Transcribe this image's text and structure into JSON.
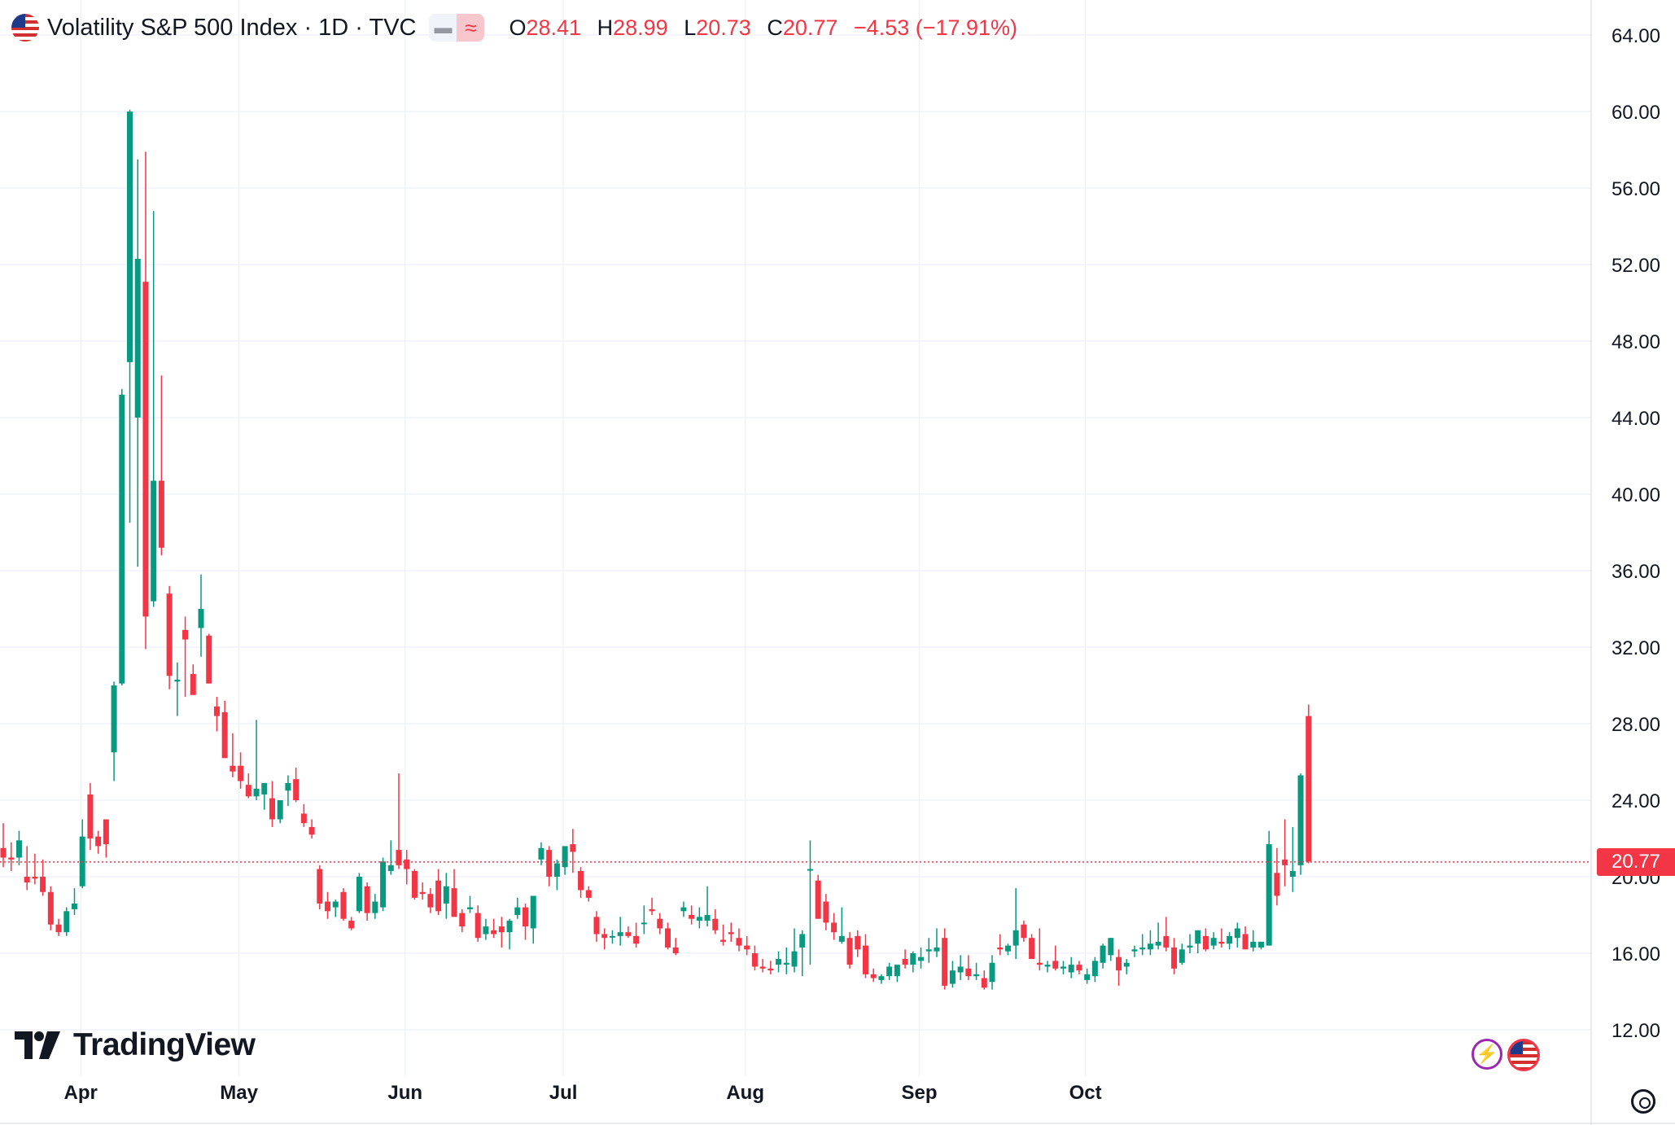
{
  "symbol": {
    "title": "Volatility S&P 500 Index · 1D · TVC",
    "flag_icon": "us-flag-icon",
    "open_label": "O",
    "open": "28.41",
    "high_label": "H",
    "high": "28.99",
    "low_label": "L",
    "low": "20.73",
    "close_label": "C",
    "close": "20.77",
    "change": "−4.53 (−17.91%)"
  },
  "colors": {
    "up": "#089981",
    "down": "#f23645",
    "grid": "#f0f3fa",
    "text": "#131722"
  },
  "brand": {
    "name": "TradingView"
  },
  "last_price_tag": "20.77",
  "badges": {
    "event_icon": "lightning-icon",
    "country_icon": "us-flag-icon"
  },
  "settings_icon": "gear-icon",
  "chart_data": {
    "type": "candlestick",
    "interval": "1D",
    "y_ticks": [
      "64.00",
      "60.00",
      "56.00",
      "52.00",
      "48.00",
      "44.00",
      "40.00",
      "36.00",
      "32.00",
      "28.00",
      "24.00",
      "20.00",
      "16.00",
      "12.00"
    ],
    "ylim": [
      10,
      65
    ],
    "x_ticks": [
      "Apr",
      "May",
      "Jun",
      "Jul",
      "Aug",
      "Sep",
      "Oct"
    ],
    "last_price": 20.77,
    "grid": true,
    "candles": [
      [
        21.5,
        22.8,
        20.5,
        21.0
      ],
      [
        21.0,
        21.8,
        20.3,
        20.9
      ],
      [
        21.0,
        22.4,
        20.6,
        21.9
      ],
      [
        20.0,
        21.6,
        19.3,
        19.7
      ],
      [
        20.0,
        21.2,
        19.6,
        19.9
      ],
      [
        20.0,
        20.9,
        19.0,
        19.2
      ],
      [
        19.2,
        19.5,
        17.2,
        17.5
      ],
      [
        17.5,
        17.8,
        16.9,
        17.1
      ],
      [
        17.1,
        18.4,
        16.9,
        18.2
      ],
      [
        18.3,
        19.4,
        18.0,
        18.6
      ],
      [
        19.5,
        23.0,
        19.4,
        22.1
      ],
      [
        24.3,
        24.9,
        21.4,
        22.0
      ],
      [
        22.1,
        22.4,
        21.2,
        21.6
      ],
      [
        23.0,
        23.0,
        21.0,
        21.7
      ],
      [
        26.5,
        30.2,
        25.0,
        30.0
      ],
      [
        30.1,
        45.5,
        30.0,
        45.2
      ],
      [
        46.9,
        60.1,
        38.5,
        60.0
      ],
      [
        44.0,
        57.5,
        36.2,
        52.3
      ],
      [
        51.1,
        57.9,
        31.9,
        33.6
      ],
      [
        34.4,
        54.8,
        34.1,
        40.7
      ],
      [
        40.7,
        46.2,
        36.8,
        37.2
      ],
      [
        34.8,
        35.2,
        29.8,
        30.5
      ],
      [
        30.2,
        31.2,
        28.4,
        30.3
      ],
      [
        32.9,
        33.6,
        29.4,
        32.4
      ],
      [
        30.6,
        31.1,
        29.6,
        29.5
      ],
      [
        33.0,
        35.8,
        31.5,
        34.0
      ],
      [
        32.6,
        32.7,
        30.1,
        30.1
      ],
      [
        28.9,
        29.4,
        27.6,
        28.4
      ],
      [
        28.6,
        29.2,
        26.4,
        26.2
      ],
      [
        25.8,
        27.5,
        25.2,
        25.5
      ],
      [
        25.8,
        26.5,
        24.6,
        25.0
      ],
      [
        24.8,
        25.4,
        24.1,
        24.2
      ],
      [
        24.2,
        28.2,
        24.0,
        24.6
      ],
      [
        24.3,
        24.8,
        23.5,
        24.9
      ],
      [
        24.1,
        25.0,
        22.6,
        23.0
      ],
      [
        23.0,
        23.8,
        22.8,
        24.0
      ],
      [
        24.5,
        25.3,
        23.7,
        24.9
      ],
      [
        25.1,
        25.7,
        23.9,
        24.0
      ],
      [
        23.3,
        23.8,
        22.6,
        22.8
      ],
      [
        22.6,
        23.0,
        22.0,
        22.2
      ],
      [
        20.4,
        20.6,
        18.3,
        18.6
      ],
      [
        18.7,
        19.2,
        17.8,
        18.2
      ],
      [
        18.4,
        18.8,
        17.9,
        18.7
      ],
      [
        19.2,
        19.4,
        17.7,
        17.8
      ],
      [
        17.7,
        17.9,
        17.2,
        17.3
      ],
      [
        18.2,
        20.2,
        18.1,
        20.0
      ],
      [
        19.5,
        19.7,
        17.7,
        18.1
      ],
      [
        18.1,
        19.1,
        17.8,
        18.7
      ],
      [
        18.4,
        21.0,
        18.2,
        20.8
      ],
      [
        20.3,
        21.9,
        20.1,
        20.6
      ],
      [
        21.4,
        25.4,
        20.4,
        20.6
      ],
      [
        20.9,
        21.4,
        19.6,
        20.4
      ],
      [
        20.3,
        20.4,
        18.8,
        18.9
      ],
      [
        19.2,
        19.7,
        18.8,
        19.1
      ],
      [
        19.1,
        19.4,
        18.1,
        18.4
      ],
      [
        19.8,
        20.4,
        18.0,
        18.2
      ],
      [
        18.6,
        20.2,
        17.8,
        19.5
      ],
      [
        19.4,
        20.4,
        18.1,
        17.9
      ],
      [
        18.1,
        18.3,
        17.1,
        17.4
      ],
      [
        18.3,
        19.0,
        18.1,
        18.4
      ],
      [
        18.1,
        18.5,
        16.6,
        16.8
      ],
      [
        17.0,
        17.8,
        16.7,
        17.4
      ],
      [
        17.2,
        17.8,
        16.8,
        17.0
      ],
      [
        17.4,
        17.9,
        16.3,
        17.1
      ],
      [
        17.1,
        17.8,
        16.2,
        17.7
      ],
      [
        18.0,
        18.9,
        17.8,
        18.4
      ],
      [
        18.4,
        18.6,
        16.7,
        17.4
      ],
      [
        17.3,
        18.9,
        16.5,
        19.0
      ],
      [
        20.9,
        21.8,
        20.6,
        21.5
      ],
      [
        21.4,
        21.6,
        19.5,
        20.0
      ],
      [
        20.0,
        20.9,
        19.3,
        20.7
      ],
      [
        20.5,
        21.1,
        20.1,
        21.6
      ],
      [
        21.7,
        22.5,
        20.2,
        21.3
      ],
      [
        20.3,
        20.5,
        18.9,
        19.3
      ],
      [
        19.3,
        19.5,
        18.7,
        18.9
      ],
      [
        17.9,
        18.2,
        16.6,
        17.0
      ],
      [
        17.0,
        17.3,
        16.2,
        16.8
      ],
      [
        16.9,
        17.2,
        16.5,
        16.9
      ],
      [
        16.9,
        17.9,
        16.4,
        17.1
      ],
      [
        17.1,
        17.4,
        16.8,
        16.9
      ],
      [
        16.9,
        17.6,
        16.3,
        16.5
      ],
      [
        17.6,
        18.5,
        17.0,
        17.6
      ],
      [
        18.3,
        18.9,
        18.0,
        18.2
      ],
      [
        17.8,
        18.1,
        17.0,
        17.3
      ],
      [
        17.3,
        17.6,
        16.2,
        16.3
      ],
      [
        16.3,
        16.8,
        15.9,
        16.0
      ],
      [
        18.2,
        18.7,
        17.9,
        18.4
      ],
      [
        18.0,
        18.5,
        17.5,
        17.8
      ],
      [
        17.7,
        18.4,
        17.3,
        17.9
      ],
      [
        17.7,
        19.5,
        17.4,
        18.0
      ],
      [
        17.8,
        18.3,
        17.0,
        17.2
      ],
      [
        16.7,
        17.5,
        16.4,
        16.6
      ],
      [
        17.1,
        17.6,
        16.6,
        17.0
      ],
      [
        16.8,
        17.3,
        16.1,
        16.4
      ],
      [
        16.4,
        16.9,
        15.9,
        16.2
      ],
      [
        16.0,
        16.4,
        15.1,
        15.3
      ],
      [
        15.3,
        15.7,
        15.0,
        15.2
      ],
      [
        15.2,
        15.6,
        14.9,
        15.1
      ],
      [
        15.4,
        16.1,
        15.0,
        15.7
      ],
      [
        15.4,
        16.3,
        14.9,
        15.5
      ],
      [
        15.3,
        17.3,
        15.0,
        16.1
      ],
      [
        16.3,
        17.2,
        14.8,
        17.0
      ],
      [
        20.4,
        21.9,
        15.4,
        20.4
      ],
      [
        19.8,
        20.1,
        17.8,
        17.8
      ],
      [
        18.7,
        19.1,
        17.2,
        17.6
      ],
      [
        17.6,
        18.1,
        16.7,
        17.1
      ],
      [
        16.6,
        18.4,
        16.5,
        16.9
      ],
      [
        16.8,
        17.1,
        15.2,
        15.4
      ],
      [
        16.9,
        17.2,
        15.8,
        16.2
      ],
      [
        16.4,
        17.0,
        14.7,
        14.9
      ],
      [
        14.9,
        15.2,
        14.5,
        14.7
      ],
      [
        14.6,
        14.9,
        14.4,
        14.8
      ],
      [
        14.8,
        15.5,
        14.6,
        15.3
      ],
      [
        14.8,
        15.3,
        14.5,
        15.4
      ],
      [
        15.7,
        16.2,
        15.2,
        15.4
      ],
      [
        15.4,
        16.1,
        15.0,
        16.0
      ],
      [
        15.6,
        16.3,
        15.2,
        15.8
      ],
      [
        16.1,
        16.8,
        15.5,
        16.2
      ],
      [
        16.1,
        17.3,
        15.8,
        16.3
      ],
      [
        16.8,
        17.3,
        14.1,
        14.3
      ],
      [
        14.4,
        15.6,
        14.2,
        15.1
      ],
      [
        15.0,
        15.9,
        14.6,
        15.3
      ],
      [
        15.2,
        15.9,
        14.6,
        14.8
      ],
      [
        14.8,
        15.5,
        14.6,
        14.9
      ],
      [
        14.7,
        15.1,
        14.1,
        14.2
      ],
      [
        14.5,
        15.9,
        14.1,
        15.5
      ],
      [
        16.3,
        17.0,
        15.9,
        16.2
      ],
      [
        16.1,
        16.5,
        15.9,
        16.4
      ],
      [
        16.4,
        19.4,
        15.7,
        17.2
      ],
      [
        17.5,
        17.7,
        16.6,
        16.8
      ],
      [
        16.8,
        17.0,
        15.7,
        15.7
      ],
      [
        15.5,
        17.3,
        15.1,
        15.4
      ],
      [
        15.3,
        15.6,
        15.0,
        15.4
      ],
      [
        15.6,
        16.4,
        15.1,
        15.2
      ],
      [
        15.2,
        15.6,
        14.9,
        15.3
      ],
      [
        15.0,
        15.8,
        14.7,
        15.4
      ],
      [
        15.4,
        15.6,
        14.9,
        15.1
      ],
      [
        14.6,
        15.2,
        14.4,
        14.9
      ],
      [
        14.8,
        15.8,
        14.5,
        15.6
      ],
      [
        15.5,
        16.5,
        15.2,
        16.4
      ],
      [
        15.9,
        16.8,
        15.6,
        16.8
      ],
      [
        15.8,
        16.2,
        14.3,
        15.1
      ],
      [
        15.3,
        15.7,
        14.9,
        15.5
      ],
      [
        16.1,
        16.4,
        15.8,
        16.2
      ],
      [
        16.2,
        17.0,
        15.9,
        16.3
      ],
      [
        16.2,
        17.2,
        15.9,
        16.5
      ],
      [
        16.4,
        17.6,
        16.2,
        16.6
      ],
      [
        16.9,
        17.9,
        16.1,
        16.3
      ],
      [
        16.3,
        16.8,
        14.9,
        15.2
      ],
      [
        15.5,
        16.5,
        15.4,
        16.2
      ],
      [
        16.3,
        17.0,
        16.0,
        16.4
      ],
      [
        16.5,
        17.2,
        16.0,
        17.2
      ],
      [
        16.9,
        17.3,
        16.1,
        16.2
      ],
      [
        16.4,
        17.1,
        16.2,
        16.8
      ],
      [
        16.6,
        17.3,
        16.3,
        16.5
      ],
      [
        16.5,
        17.1,
        16.2,
        16.9
      ],
      [
        16.8,
        17.6,
        16.3,
        17.3
      ],
      [
        17.0,
        17.4,
        16.2,
        16.2
      ],
      [
        16.3,
        17.2,
        16.1,
        16.6
      ],
      [
        16.3,
        16.6,
        16.2,
        16.6
      ],
      [
        16.4,
        22.4,
        16.4,
        21.7
      ],
      [
        20.2,
        21.5,
        18.5,
        19.0
      ],
      [
        20.9,
        23.0,
        19.5,
        20.6
      ],
      [
        20.0,
        22.6,
        19.2,
        20.3
      ],
      [
        20.6,
        25.4,
        20.1,
        25.3
      ],
      [
        28.4,
        29.0,
        20.7,
        20.8
      ]
    ]
  }
}
